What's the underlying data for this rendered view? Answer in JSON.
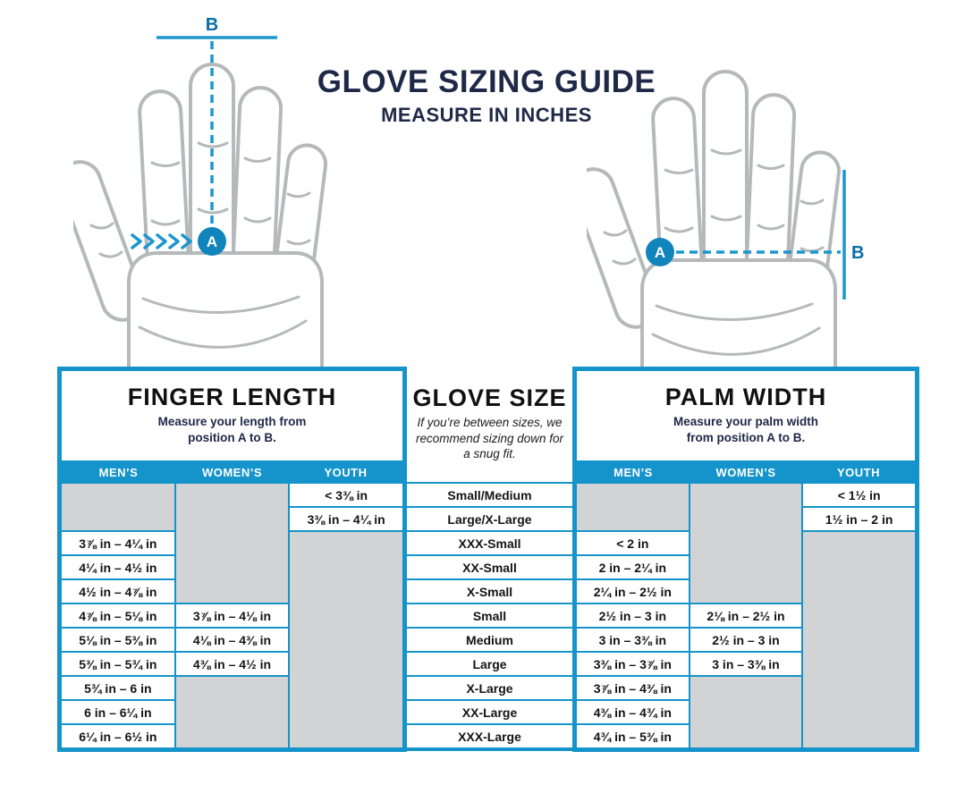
{
  "page": {
    "title": "GLOVE SIZING GUIDE",
    "subtitle": "MEASURE IN INCHES"
  },
  "colors": {
    "accent_blue": "#1593cb",
    "navy_text": "#1e2847",
    "empty_cell_gray": "#d2d3d4",
    "hand_outline_gray": "#b6b9bb"
  },
  "diagram": {
    "finger_hand": {
      "point_a": "A",
      "point_b": "B"
    },
    "palm_hand": {
      "point_a": "A",
      "point_b": "B"
    }
  },
  "table": {
    "finger": {
      "title": "FINGER LENGTH",
      "caption": "Measure your length from position A to B.",
      "columns": [
        "MEN’S",
        "WOMEN’S",
        "YOUTH"
      ]
    },
    "size": {
      "title": "GLOVE SIZE",
      "caption": "If you’re between sizes, we recommend sizing down for a snug fit."
    },
    "palm": {
      "title": "PALM WIDTH",
      "caption": "Measure your palm width from position A to B.",
      "columns": [
        "MEN’S",
        "WOMEN’S",
        "YOUTH"
      ]
    },
    "rows": [
      {
        "finger_men": null,
        "finger_women": null,
        "finger_youth": "< 3⅜ in",
        "size": "Small/Medium",
        "palm_men": null,
        "palm_women": null,
        "palm_youth": "< 1½ in"
      },
      {
        "finger_men": null,
        "finger_women": null,
        "finger_youth": "3⅜ in – 4¼ in",
        "size": "Large/X-Large",
        "palm_men": null,
        "palm_women": null,
        "palm_youth": "1½ in – 2 in"
      },
      {
        "finger_men": "3⅞ in – 4¼ in",
        "finger_women": null,
        "finger_youth": null,
        "size": "XXX-Small",
        "palm_men": "< 2 in",
        "palm_women": null,
        "palm_youth": null
      },
      {
        "finger_men": "4¼ in – 4½ in",
        "finger_women": null,
        "finger_youth": null,
        "size": "XX-Small",
        "palm_men": "2 in – 2¼ in",
        "palm_women": null,
        "palm_youth": null
      },
      {
        "finger_men": "4½ in – 4⅞ in",
        "finger_women": null,
        "finger_youth": null,
        "size": "X-Small",
        "palm_men": "2¼ in – 2½ in",
        "palm_women": null,
        "palm_youth": null
      },
      {
        "finger_men": "4⅞ in – 5⅛ in",
        "finger_women": "3⅞ in – 4⅛ in",
        "finger_youth": null,
        "size": "Small",
        "palm_men": "2½ in – 3 in",
        "palm_women": "2⅛ in – 2½ in",
        "palm_youth": null
      },
      {
        "finger_men": "5⅛ in – 5⅜ in",
        "finger_women": "4⅛ in – 4⅜ in",
        "finger_youth": null,
        "size": "Medium",
        "palm_men": "3 in – 3⅜ in",
        "palm_women": "2½ in – 3 in",
        "palm_youth": null
      },
      {
        "finger_men": "5⅜ in – 5¾ in",
        "finger_women": "4⅜ in – 4½ in",
        "finger_youth": null,
        "size": "Large",
        "palm_men": "3⅜ in – 3⅞ in",
        "palm_women": "3 in – 3⅜ in",
        "palm_youth": null
      },
      {
        "finger_men": "5¾ in – 6 in",
        "finger_women": null,
        "finger_youth": null,
        "size": "X-Large",
        "palm_men": "3⅞ in – 4⅜ in",
        "palm_women": null,
        "palm_youth": null
      },
      {
        "finger_men": "6 in – 6¼ in",
        "finger_women": null,
        "finger_youth": null,
        "size": "XX-Large",
        "palm_men": "4⅜ in – 4¾ in",
        "palm_women": null,
        "palm_youth": null
      },
      {
        "finger_men": "6¼ in – 6½ in",
        "finger_women": null,
        "finger_youth": null,
        "size": "XXX-Large",
        "palm_men": "4¾ in – 5⅜ in",
        "palm_women": null,
        "palm_youth": null
      }
    ]
  }
}
